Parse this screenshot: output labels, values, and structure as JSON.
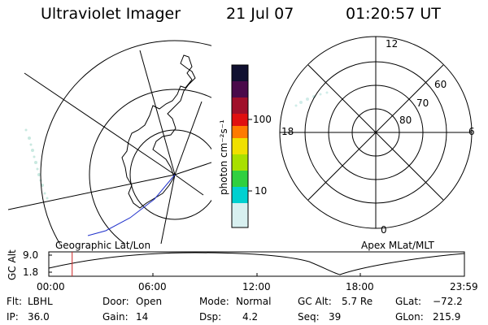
{
  "header": {
    "instrument": "Ultraviolet Imager",
    "date": "21 Jul 07",
    "time": "01:20:57 UT"
  },
  "colorbar": {
    "unit": "photon cm⁻²s⁻¹",
    "ticks": [
      "100",
      "10"
    ],
    "colors": [
      "#101030",
      "#4a0a4a",
      "#a0102a",
      "#e01010",
      "#ff7a00",
      "#f0e000",
      "#a8e000",
      "#30d040",
      "#00d0d0",
      "#d8f0f0"
    ]
  },
  "geo_panel": {
    "label": "Geographic Lat/Lon"
  },
  "polar_panel": {
    "label": "Apex MLat/MLT",
    "mlt_labels": {
      "top": "12",
      "bottom": "0",
      "left": "18",
      "right": "6"
    },
    "lat_labels": [
      "60",
      "70",
      "80"
    ]
  },
  "timeline": {
    "ylabel": "GC Alt",
    "y_ticks": [
      "9.0",
      "1.8"
    ],
    "x_ticks": [
      "00:00",
      "06:00",
      "12:00",
      "18:00",
      "23:59"
    ],
    "current_time_fraction": 0.0562
  },
  "info": {
    "flt_label": "Flt:",
    "flt_value": "LBHL",
    "ip_label": "IP:",
    "ip_value": "36.0",
    "door_label": "Door:",
    "door_value": "Open",
    "gain_label": "Gain:",
    "gain_value": "14",
    "mode_label": "Mode:",
    "mode_value": "Normal",
    "dsp_label": "Dsp:",
    "dsp_value": "4.2",
    "gcalt_label": "GC Alt:",
    "gcalt_value": "5.7 Re",
    "seq_label": "Seq:",
    "seq_value": "39",
    "glat_label": "GLat:",
    "glat_value": "−72.2",
    "glon_label": "GLon:",
    "glon_value": "215.9"
  }
}
